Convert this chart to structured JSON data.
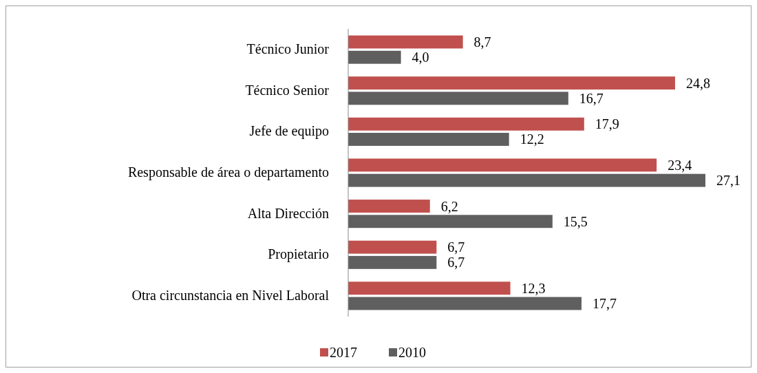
{
  "chart_data": {
    "type": "bar",
    "orientation": "horizontal",
    "categories": [
      "Técnico Junior",
      "Técnico Senior",
      "Jefe de equipo",
      "Responsable de área o departamento",
      "Alta Dirección",
      "Propietario",
      "Otra circunstancia en Nivel Laboral"
    ],
    "series": [
      {
        "name": "2017",
        "color": "#c0504d",
        "values": [
          8.7,
          24.8,
          17.9,
          23.4,
          6.2,
          6.7,
          12.3
        ],
        "value_labels": [
          "8,7",
          "24,8",
          "17,9",
          "23,4",
          "6,2",
          "6,7",
          "12,3"
        ]
      },
      {
        "name": "2010",
        "color": "#5f5f5f",
        "values": [
          4.0,
          16.7,
          12.2,
          27.1,
          15.5,
          6.7,
          17.7
        ],
        "value_labels": [
          "4,0",
          "16,7",
          "12,2",
          "27,1",
          "15,5",
          "6,7",
          "17,7"
        ]
      }
    ],
    "legend": "bottom"
  }
}
